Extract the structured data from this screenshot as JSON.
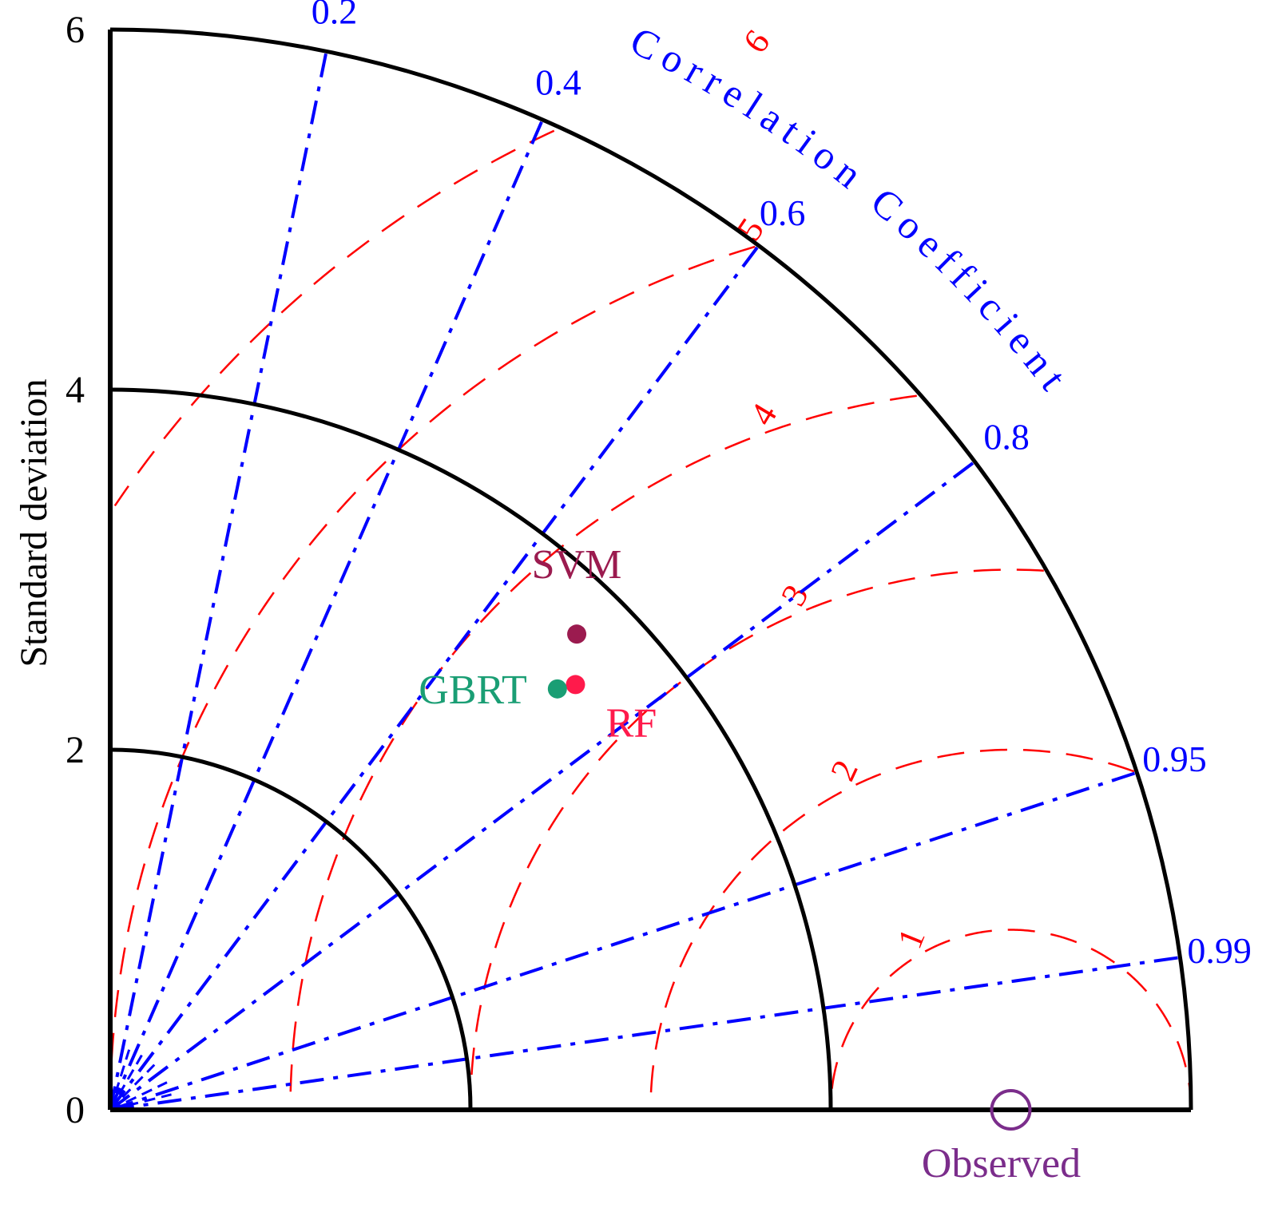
{
  "chart_data": {
    "type": "scatter",
    "subtype": "taylor-diagram",
    "ylabel": "Standard deviation",
    "arc_label": "Correlation Coefficient",
    "std_ticks": [
      "0",
      "2",
      "4",
      "6"
    ],
    "std_range": [
      0,
      6
    ],
    "std_arcs": [
      2,
      4,
      6
    ],
    "correlation_ticks": [
      {
        "value": 0.2,
        "label": "0.2"
      },
      {
        "value": 0.4,
        "label": "0.4"
      },
      {
        "value": 0.6,
        "label": "0.6"
      },
      {
        "value": 0.8,
        "label": "0.8"
      },
      {
        "value": 0.95,
        "label": "0.95"
      },
      {
        "value": 0.99,
        "label": "0.99"
      }
    ],
    "rms_contours": [
      {
        "value": 1,
        "label": "1"
      },
      {
        "value": 2,
        "label": "2"
      },
      {
        "value": 3,
        "label": "3"
      },
      {
        "value": 4,
        "label": "4"
      },
      {
        "value": 5,
        "label": "5"
      },
      {
        "value": 6,
        "label": "6"
      }
    ],
    "reference": {
      "name": "Observed",
      "std": 5.0,
      "color": "#7b2d8b"
    },
    "points": [
      {
        "name": "SVM",
        "std": 3.7,
        "correlation": 0.7,
        "color": "#9b1b4f"
      },
      {
        "name": "RF",
        "std": 3.5,
        "correlation": 0.738,
        "color": "#ff1a4b"
      },
      {
        "name": "GBRT",
        "std": 3.41,
        "correlation": 0.728,
        "color": "#1a9e74"
      }
    ],
    "colors": {
      "std_arcs": "#000000",
      "correlation_lines": "#0000ff",
      "rms_contours": "#ff0000"
    }
  }
}
